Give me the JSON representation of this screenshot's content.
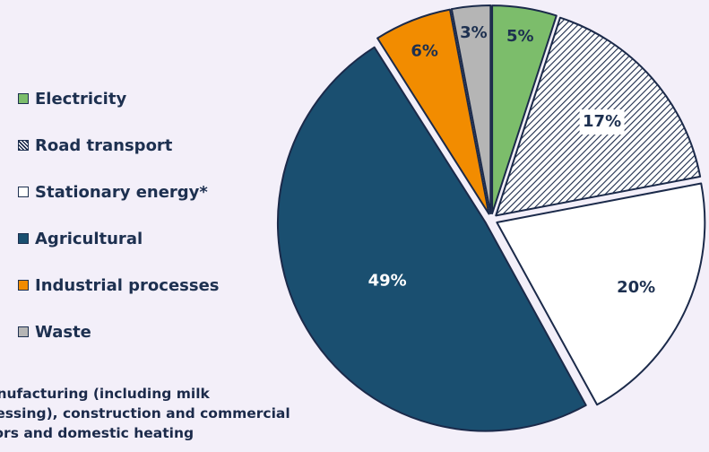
{
  "chart_data": {
    "type": "pie",
    "slices": [
      {
        "label": "Electricity",
        "value": 5,
        "value_label": "5%",
        "color": "#7cbd6b",
        "pattern": "solid"
      },
      {
        "label": "Road transport",
        "value": 17,
        "value_label": "17%",
        "color": "#1b2a4a",
        "pattern": "diagonal-hatch"
      },
      {
        "label": "Stationary energy*",
        "value": 20,
        "value_label": "20%",
        "color": "#ffffff",
        "pattern": "solid"
      },
      {
        "label": "Agricultural",
        "value": 49,
        "value_label": "49%",
        "color": "#1a4f70",
        "pattern": "solid"
      },
      {
        "label": "Industrial processes",
        "value": 6,
        "value_label": "6%",
        "color": "#f28c00",
        "pattern": "solid"
      },
      {
        "label": "Waste",
        "value": 3,
        "value_label": "3%",
        "color": "#b5b5b5",
        "pattern": "solid"
      }
    ],
    "legend_position": "left",
    "footnote": "anufacturing (including milk\ncessing), construction and commercial\ntors and domestic heating"
  }
}
